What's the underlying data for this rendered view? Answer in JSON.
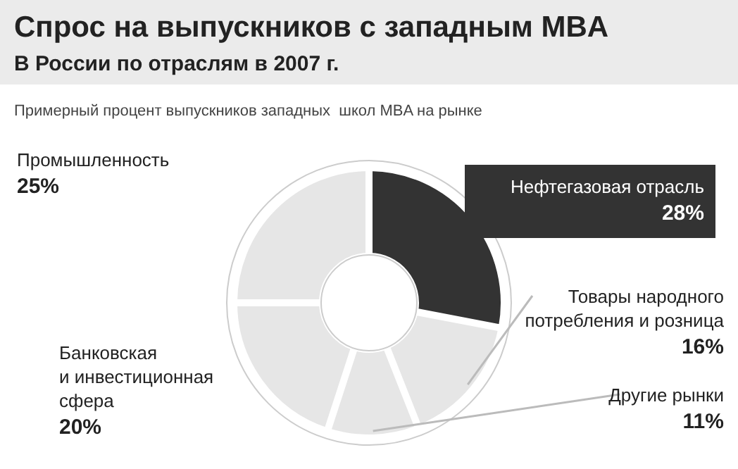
{
  "chart_data": {
    "type": "donut",
    "title": "Спрос на выпускников с западным MBA",
    "subtitle": "В России по отраслям в 2007 г.",
    "annotations": [
      "Примерный процент выпускников западных  школ MBA на рынке"
    ],
    "categories": [
      "Нефтегазовая отрасль",
      "Товары народного\nпотребления и розница",
      "Другие рынки",
      "Банковская\nи инвестиционная\nсфера",
      "Промышленность"
    ],
    "values": [
      28,
      16,
      11,
      20,
      25
    ],
    "value_labels": [
      "28%",
      "16%",
      "11%",
      "20%",
      "25%"
    ],
    "colors": [
      "#333333",
      "#e6e6e6",
      "#e6e6e6",
      "#e6e6e6",
      "#e6e6e6"
    ]
  }
}
